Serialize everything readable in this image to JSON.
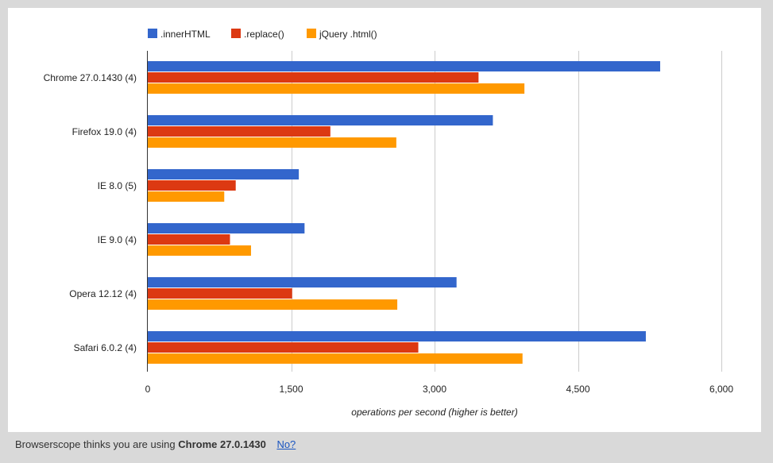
{
  "chart_data": {
    "type": "bar",
    "orientation": "horizontal",
    "categories": [
      "Chrome 27.0.1430 (4)",
      "Firefox 19.0 (4)",
      "IE 8.0 (5)",
      "IE 9.0 (4)",
      "Opera 12.12 (4)",
      "Safari 6.0.2 (4)"
    ],
    "series": [
      {
        "name": ".innerHTML",
        "color": "#3366cc",
        "values": [
          5360,
          3610,
          1580,
          1640,
          3230,
          5210
        ]
      },
      {
        "name": ".replace()",
        "color": "#dc3912",
        "values": [
          3460,
          1910,
          920,
          860,
          1510,
          2830
        ]
      },
      {
        "name": "jQuery .html()",
        "color": "#ff9900",
        "values": [
          3940,
          2600,
          800,
          1080,
          2610,
          3920
        ]
      }
    ],
    "xlabel": "operations per second (higher is better)",
    "ylabel": "",
    "xlim": [
      0,
      6000
    ],
    "xticks": [
      0,
      1500,
      3000,
      4500,
      6000
    ],
    "xtick_labels": [
      "0",
      "1,500",
      "3,000",
      "4,500",
      "6,000"
    ],
    "grid": true,
    "legend_position": "top-left"
  },
  "footer": {
    "prefix": "Browserscope thinks you are using",
    "browser": "Chrome 27.0.1430",
    "link": "No?"
  }
}
